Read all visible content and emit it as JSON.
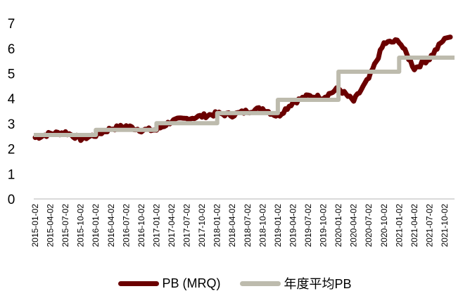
{
  "chart_data": {
    "type": "line",
    "title": "",
    "xlabel": "",
    "ylabel": "",
    "ylim": [
      0,
      7
    ],
    "yticks": [
      0,
      1,
      2,
      3,
      4,
      5,
      6,
      7
    ],
    "grid": false,
    "legend_position": "bottom",
    "categories": [
      "2015-01-02",
      "2015-04-02",
      "2015-07-02",
      "2015-10-02",
      "2016-01-02",
      "2016-04-02",
      "2016-07-02",
      "2016-10-02",
      "2017-01-02",
      "2017-04-02",
      "2017-07-02",
      "2017-10-02",
      "2018-01-02",
      "2018-04-02",
      "2018-07-02",
      "2018-10-02",
      "2019-01-02",
      "2019-04-02",
      "2019-07-02",
      "2019-10-02",
      "2020-01-02",
      "2020-04-02",
      "2020-07-02",
      "2020-10-02",
      "2021-01-02",
      "2021-04-02",
      "2021-07-02",
      "2021-10-02"
    ],
    "series": [
      {
        "name": "PB (MRQ)",
        "color": "#6B0000",
        "values": [
          2.45,
          2.6,
          2.65,
          2.4,
          2.55,
          2.8,
          2.9,
          2.75,
          2.75,
          3.1,
          3.2,
          3.3,
          3.4,
          3.35,
          3.5,
          3.6,
          3.3,
          3.85,
          4.1,
          4.05,
          4.4,
          3.9,
          4.8,
          6.2,
          6.3,
          5.2,
          5.6,
          6.4
        ]
      },
      {
        "name": "年度平均PB",
        "color": "#BDBBAD",
        "step": true,
        "annual_values": {
          "2015": 2.55,
          "2016": 2.75,
          "2017": 3.02,
          "2018": 3.42,
          "2019": 3.95,
          "2020": 5.07,
          "2021": 5.63
        }
      }
    ]
  },
  "legend": {
    "items": [
      {
        "label": "PB (MRQ)",
        "color": "#6B0000"
      },
      {
        "label": "年度平均PB",
        "color": "#BDBBAD"
      }
    ]
  }
}
